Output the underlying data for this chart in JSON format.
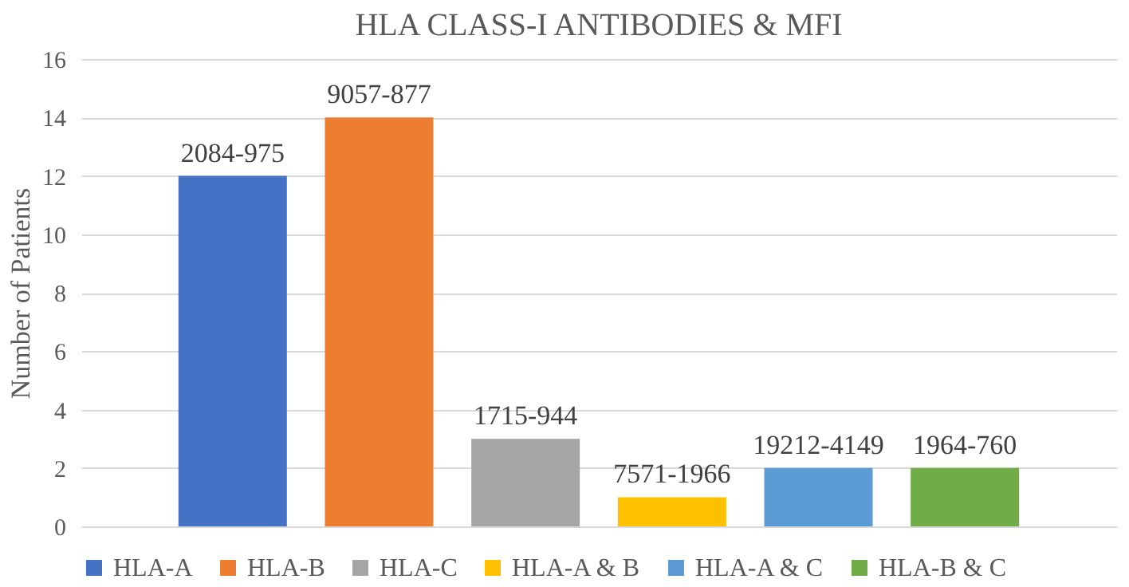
{
  "chart_data": {
    "type": "bar",
    "title": "HLA CLASS-I ANTIBODIES & MFI",
    "ylabel": "Number of Patients",
    "categories": [
      null
    ],
    "series": [
      {
        "name": "HLA-A",
        "color": "#4472c4",
        "values": [
          12
        ],
        "value_labels": [
          "2084-975"
        ]
      },
      {
        "name": "HLA-B",
        "color": "#ed7d31",
        "values": [
          14
        ],
        "value_labels": [
          "9057-877"
        ]
      },
      {
        "name": "HLA-C",
        "color": "#a5a5a5",
        "values": [
          3
        ],
        "value_labels": [
          "1715-944"
        ]
      },
      {
        "name": "HLA-A & B",
        "color": "#ffc000",
        "values": [
          1
        ],
        "value_labels": [
          "7571-1966"
        ]
      },
      {
        "name": "HLA-A & C",
        "color": "#5b9bd5",
        "values": [
          2
        ],
        "value_labels": [
          "19212-4149"
        ]
      },
      {
        "name": "HLA-B & C",
        "color": "#70ad47",
        "values": [
          2
        ],
        "value_labels": [
          "1964-760"
        ]
      }
    ],
    "ylim": [
      0,
      16
    ],
    "yticks": [
      0,
      2,
      4,
      6,
      8,
      10,
      12,
      14,
      16
    ],
    "grid": "y",
    "legend": "bottom",
    "tick_labels": "y"
  }
}
